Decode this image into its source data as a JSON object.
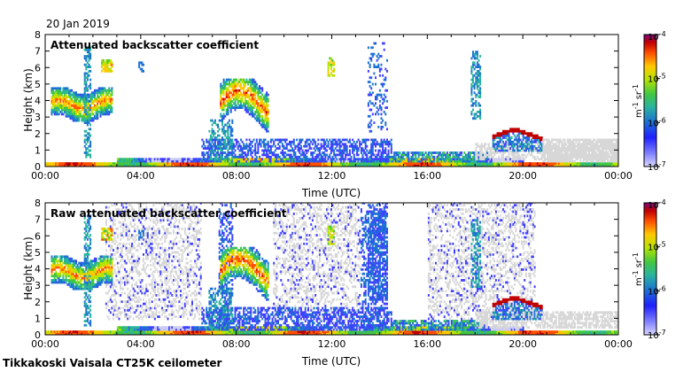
{
  "date": "20 Jan 2019",
  "footer": "Tikkakoski Vaisala CT25K ceilometer",
  "colors": {
    "scale": [
      "#d7d7d7",
      "#c8c8ff",
      "#4040ff",
      "#1d73d2",
      "#2ab2a0",
      "#42c742",
      "#b8e400",
      "#ffc800",
      "#ff5000",
      "#c00000",
      "#800080"
    ]
  },
  "chart_data": [
    {
      "type": "heatmap",
      "title": "Attenuated backscatter coefficient",
      "xlabel": "Time (UTC)",
      "ylabel": "Height (km)",
      "xlim": [
        0,
        24
      ],
      "ylim": [
        0,
        8
      ],
      "x_ticks": [
        0,
        4,
        8,
        12,
        16,
        20,
        24
      ],
      "x_tick_labels": [
        "00:00",
        "04:00",
        "08:00",
        "12:00",
        "16:00",
        "20:00",
        "00:00"
      ],
      "y_ticks": [
        0,
        1,
        2,
        3,
        4,
        5,
        6,
        7,
        8
      ],
      "y_tick_labels": [
        "0",
        "1",
        "2",
        "3",
        "4",
        "5",
        "6",
        "7",
        "8"
      ],
      "colorbar": {
        "scale": "log",
        "range": [
          1e-07,
          0.0001
        ],
        "ticks": [
          {
            "base": "10",
            "exp": "-4",
            "value": 0.0001
          },
          {
            "base": "10",
            "exp": "-5",
            "value": 1e-05
          },
          {
            "base": "10",
            "exp": "-6",
            "value": 1e-06
          },
          {
            "base": "10",
            "exp": "-7",
            "value": 1e-07
          }
        ],
        "unit": {
          "m": "m",
          "m_exp": "-1",
          "sr": "sr",
          "sr_exp": "-1"
        }
      }
    },
    {
      "type": "heatmap",
      "title": "Raw attenuated backscatter coefficient",
      "xlabel": "Time (UTC)",
      "ylabel": "Height (km)",
      "xlim": [
        0,
        24
      ],
      "ylim": [
        0,
        8
      ],
      "x_ticks": [
        0,
        4,
        8,
        12,
        16,
        20,
        24
      ],
      "x_tick_labels": [
        "00:00",
        "04:00",
        "08:00",
        "12:00",
        "16:00",
        "20:00",
        "00:00"
      ],
      "y_ticks": [
        0,
        1,
        2,
        3,
        4,
        5,
        6,
        7,
        8
      ],
      "y_tick_labels": [
        "0",
        "1",
        "2",
        "3",
        "4",
        "5",
        "6",
        "7",
        "8"
      ],
      "colorbar": {
        "scale": "log",
        "range": [
          1e-07,
          0.0001
        ],
        "ticks": [
          {
            "base": "10",
            "exp": "-4",
            "value": 0.0001
          },
          {
            "base": "10",
            "exp": "-5",
            "value": 1e-05
          },
          {
            "base": "10",
            "exp": "-6",
            "value": 1e-06
          },
          {
            "base": "10",
            "exp": "-7",
            "value": 1e-07
          }
        ],
        "unit": {
          "m": "m",
          "m_exp": "-1",
          "sr": "sr",
          "sr_exp": "-1"
        }
      }
    }
  ]
}
